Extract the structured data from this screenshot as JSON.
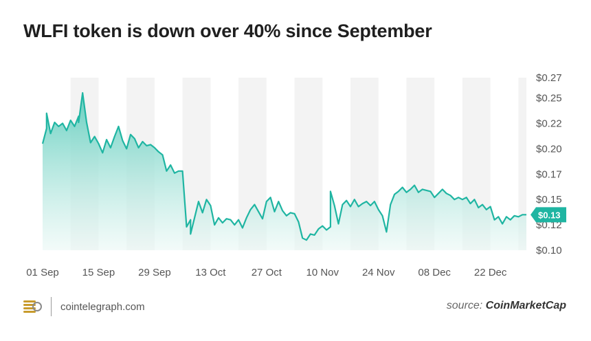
{
  "title": "WLFI token is down over 40% since September",
  "footer": {
    "site": "cointelegraph.com",
    "source_prefix": "source: ",
    "source_name": "CoinMarketCap"
  },
  "colors": {
    "line": "#1fb5a2",
    "fill_top": "#5fcdbd",
    "fill_bottom": "#eaf8f5",
    "band": "#f3f3f3",
    "badge": "#1fb5a2"
  },
  "chart_data": {
    "type": "area",
    "title": "WLFI token is down over 40% since September",
    "xlabel": "",
    "ylabel": "",
    "ylim": [
      0.1,
      0.27
    ],
    "y_ticks": [
      "$0.27",
      "$0.25",
      "$0.22",
      "$0.20",
      "$0.17",
      "$0.15",
      "$0.12",
      "$0.10"
    ],
    "y_tick_values": [
      0.27,
      0.25,
      0.225,
      0.2,
      0.175,
      0.15,
      0.125,
      0.1
    ],
    "x_ticks": [
      "01 Sep",
      "15 Sep",
      "29 Sep",
      "13 Oct",
      "27 Oct",
      "10 Nov",
      "24 Nov",
      "08 Dec",
      "22 Dec"
    ],
    "x_tick_dates": [
      "2025-09-01",
      "2025-09-15",
      "2025-09-29",
      "2025-10-13",
      "2025-10-27",
      "2025-11-10",
      "2025-11-24",
      "2025-12-08",
      "2025-12-22"
    ],
    "current_label": "$0.13",
    "current_value": 0.135,
    "grid": false,
    "series": [
      {
        "points": [
          [
            "2025-09-01",
            0.205
          ],
          [
            "2025-09-02",
            0.22
          ],
          [
            "2025-09-02",
            0.235
          ],
          [
            "2025-09-03",
            0.215
          ],
          [
            "2025-09-04",
            0.226
          ],
          [
            "2025-09-05",
            0.222
          ],
          [
            "2025-09-06",
            0.225
          ],
          [
            "2025-09-07",
            0.218
          ],
          [
            "2025-09-08",
            0.228
          ],
          [
            "2025-09-09",
            0.222
          ],
          [
            "2025-09-10",
            0.232
          ],
          [
            "2025-09-10",
            0.226
          ],
          [
            "2025-09-11",
            0.255
          ],
          [
            "2025-09-12",
            0.226
          ],
          [
            "2025-09-13",
            0.206
          ],
          [
            "2025-09-14",
            0.212
          ],
          [
            "2025-09-15",
            0.205
          ],
          [
            "2025-09-16",
            0.196
          ],
          [
            "2025-09-17",
            0.209
          ],
          [
            "2025-09-18",
            0.201
          ],
          [
            "2025-09-19",
            0.212
          ],
          [
            "2025-09-20",
            0.222
          ],
          [
            "2025-09-21",
            0.208
          ],
          [
            "2025-09-22",
            0.2
          ],
          [
            "2025-09-23",
            0.214
          ],
          [
            "2025-09-24",
            0.21
          ],
          [
            "2025-09-25",
            0.201
          ],
          [
            "2025-09-26",
            0.207
          ],
          [
            "2025-09-27",
            0.203
          ],
          [
            "2025-09-28",
            0.204
          ],
          [
            "2025-09-29",
            0.201
          ],
          [
            "2025-09-30",
            0.197
          ],
          [
            "2025-10-01",
            0.194
          ],
          [
            "2025-10-02",
            0.178
          ],
          [
            "2025-10-03",
            0.184
          ],
          [
            "2025-10-04",
            0.176
          ],
          [
            "2025-10-05",
            0.178
          ],
          [
            "2025-10-06",
            0.178
          ],
          [
            "2025-10-07",
            0.123
          ],
          [
            "2025-10-08",
            0.13
          ],
          [
            "2025-10-08",
            0.116
          ],
          [
            "2025-10-09",
            0.132
          ],
          [
            "2025-10-10",
            0.148
          ],
          [
            "2025-10-11",
            0.137
          ],
          [
            "2025-10-12",
            0.15
          ],
          [
            "2025-10-13",
            0.144
          ],
          [
            "2025-10-14",
            0.125
          ],
          [
            "2025-10-15",
            0.132
          ],
          [
            "2025-10-16",
            0.127
          ],
          [
            "2025-10-17",
            0.131
          ],
          [
            "2025-10-18",
            0.13
          ],
          [
            "2025-10-19",
            0.125
          ],
          [
            "2025-10-20",
            0.13
          ],
          [
            "2025-10-21",
            0.122
          ],
          [
            "2025-10-22",
            0.132
          ],
          [
            "2025-10-23",
            0.14
          ],
          [
            "2025-10-24",
            0.145
          ],
          [
            "2025-10-25",
            0.138
          ],
          [
            "2025-10-26",
            0.131
          ],
          [
            "2025-10-27",
            0.148
          ],
          [
            "2025-10-28",
            0.152
          ],
          [
            "2025-10-29",
            0.138
          ],
          [
            "2025-10-30",
            0.148
          ],
          [
            "2025-10-31",
            0.139
          ],
          [
            "2025-11-01",
            0.134
          ],
          [
            "2025-11-02",
            0.137
          ],
          [
            "2025-11-03",
            0.136
          ],
          [
            "2025-11-04",
            0.128
          ],
          [
            "2025-11-05",
            0.112
          ],
          [
            "2025-11-06",
            0.11
          ],
          [
            "2025-11-07",
            0.116
          ],
          [
            "2025-11-08",
            0.115
          ],
          [
            "2025-11-09",
            0.121
          ],
          [
            "2025-11-10",
            0.124
          ],
          [
            "2025-11-11",
            0.12
          ],
          [
            "2025-11-12",
            0.123
          ],
          [
            "2025-11-12",
            0.158
          ],
          [
            "2025-11-13",
            0.144
          ],
          [
            "2025-11-14",
            0.126
          ],
          [
            "2025-11-15",
            0.145
          ],
          [
            "2025-11-16",
            0.149
          ],
          [
            "2025-11-17",
            0.143
          ],
          [
            "2025-11-18",
            0.15
          ],
          [
            "2025-11-19",
            0.143
          ],
          [
            "2025-11-20",
            0.146
          ],
          [
            "2025-11-21",
            0.148
          ],
          [
            "2025-11-22",
            0.144
          ],
          [
            "2025-11-23",
            0.148
          ],
          [
            "2025-11-24",
            0.14
          ],
          [
            "2025-11-25",
            0.134
          ],
          [
            "2025-11-26",
            0.118
          ],
          [
            "2025-11-27",
            0.145
          ],
          [
            "2025-11-28",
            0.155
          ],
          [
            "2025-11-29",
            0.158
          ],
          [
            "2025-11-30",
            0.162
          ],
          [
            "2025-12-01",
            0.157
          ],
          [
            "2025-12-02",
            0.16
          ],
          [
            "2025-12-03",
            0.164
          ],
          [
            "2025-12-04",
            0.157
          ],
          [
            "2025-12-05",
            0.16
          ],
          [
            "2025-12-06",
            0.159
          ],
          [
            "2025-12-07",
            0.158
          ],
          [
            "2025-12-08",
            0.152
          ],
          [
            "2025-12-09",
            0.156
          ],
          [
            "2025-12-10",
            0.16
          ],
          [
            "2025-12-11",
            0.156
          ],
          [
            "2025-12-12",
            0.154
          ],
          [
            "2025-12-13",
            0.15
          ],
          [
            "2025-12-14",
            0.152
          ],
          [
            "2025-12-15",
            0.15
          ],
          [
            "2025-12-16",
            0.152
          ],
          [
            "2025-12-17",
            0.146
          ],
          [
            "2025-12-18",
            0.15
          ],
          [
            "2025-12-19",
            0.142
          ],
          [
            "2025-12-20",
            0.145
          ],
          [
            "2025-12-21",
            0.14
          ],
          [
            "2025-12-22",
            0.143
          ],
          [
            "2025-12-23",
            0.13
          ],
          [
            "2025-12-24",
            0.133
          ],
          [
            "2025-12-25",
            0.126
          ],
          [
            "2025-12-26",
            0.133
          ],
          [
            "2025-12-27",
            0.13
          ],
          [
            "2025-12-28",
            0.134
          ],
          [
            "2025-12-29",
            0.133
          ],
          [
            "2025-12-30",
            0.135
          ],
          [
            "2025-12-31",
            0.135
          ]
        ]
      }
    ]
  }
}
